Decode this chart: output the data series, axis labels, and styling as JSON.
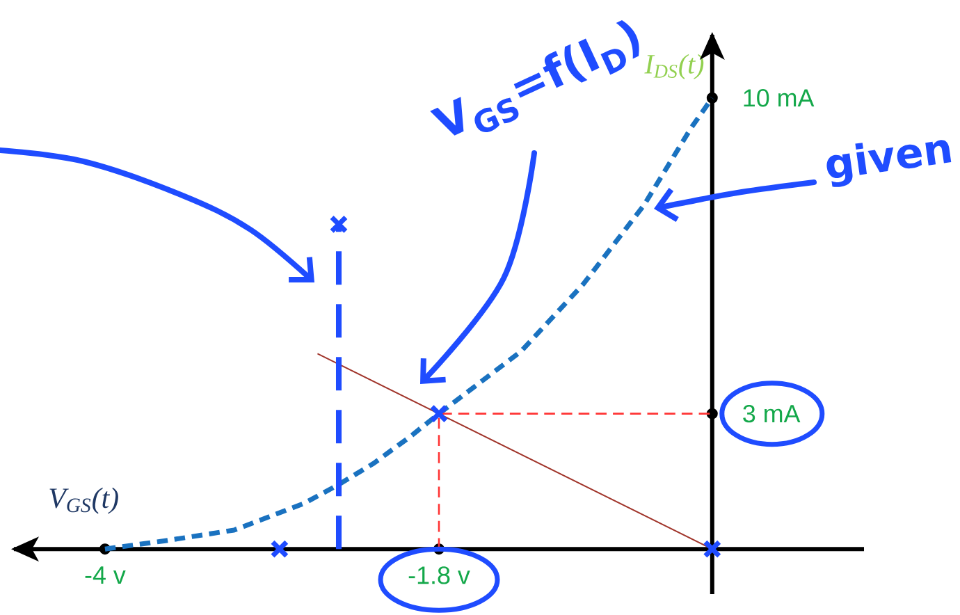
{
  "chart_data": {
    "type": "line",
    "xlabel": "V$_{GS}$(t)",
    "ylabel": "I$_{DS}$(t)",
    "annotations": [
      "V$_{GS}$=f(I$_{D}$)",
      "given"
    ],
    "xlim": [
      -4.6,
      1.0
    ],
    "ylim": [
      -1.0,
      11.4
    ],
    "xticks": [
      {
        "value": -4,
        "label": "-4 v"
      },
      {
        "value": -1.8,
        "label": "-1.8 v"
      }
    ],
    "yticks": [
      {
        "value": 3,
        "label": "3 mA"
      },
      {
        "value": 10,
        "label": "10 mA"
      }
    ],
    "series": [
      {
        "color": "#1a72c0",
        "line_style": "dotted",
        "x": [
          -4,
          -3.61,
          -3.15,
          -2.69,
          -2.46,
          -2.23,
          -1.99,
          -1.8,
          -1.26,
          -0.85,
          -0.45,
          -0.14,
          0
        ],
        "values": [
          0,
          0.18,
          0.42,
          1.01,
          1.43,
          1.9,
          2.49,
          3,
          4.38,
          5.87,
          7.62,
          9.33,
          10
        ]
      },
      {
        "color": "#a0342a",
        "line_style": "solid",
        "x": [
          -2.6,
          0
        ],
        "values": [
          4.33,
          0
        ]
      },
      {
        "color": "#ff3333",
        "line_style": "dashed",
        "x": [
          -1.8,
          -1.8,
          0
        ],
        "values": [
          0,
          3,
          3
        ]
      },
      {
        "color": "#1f4cff",
        "line_style": "dashed",
        "x": [
          -2.46,
          -2.46
        ],
        "values": [
          0,
          7.2
        ]
      },
      {
        "type": "scatter",
        "color": "#1f4cff",
        "marker": "cross",
        "x": [
          -2.46,
          -1.8,
          0,
          -2.85
        ],
        "values": [
          7.2,
          3,
          0,
          0
        ]
      }
    ]
  }
}
